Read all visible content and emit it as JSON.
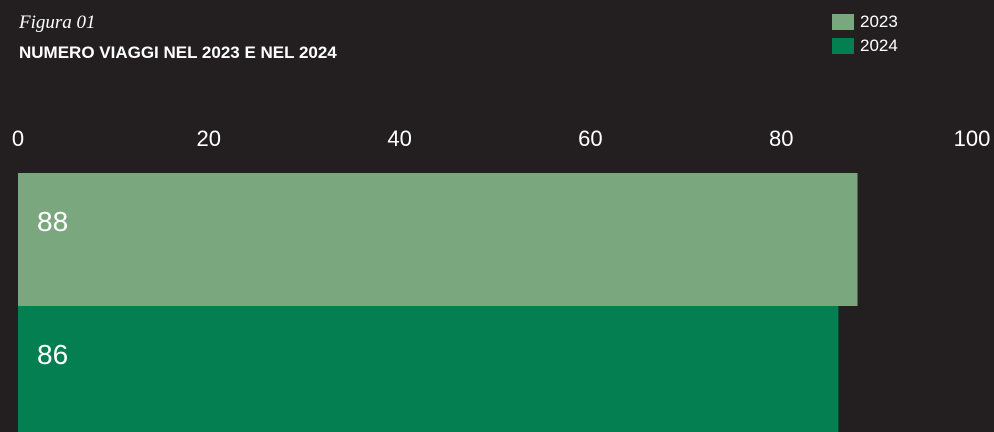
{
  "figure_label": "Figura 01",
  "title": "NUMERO VIAGGI NEL 2023 E NEL 2024",
  "legend": [
    {
      "label": "2023",
      "color": "#7aa77e"
    },
    {
      "label": "2024",
      "color": "#037f51"
    }
  ],
  "chart_data": {
    "type": "bar",
    "orientation": "horizontal",
    "title": "NUMERO VIAGGI NEL 2023 E NEL 2024",
    "xlabel": "",
    "ylabel": "",
    "xlim": [
      0,
      100
    ],
    "x_ticks": [
      0,
      20,
      40,
      60,
      80,
      100
    ],
    "grid": false,
    "legend_position": "top-right",
    "series": [
      {
        "name": "2023",
        "value": 88,
        "label": "88",
        "color": "#7aa77e"
      },
      {
        "name": "2024",
        "value": 86,
        "label": "86",
        "color": "#037f51"
      }
    ]
  }
}
